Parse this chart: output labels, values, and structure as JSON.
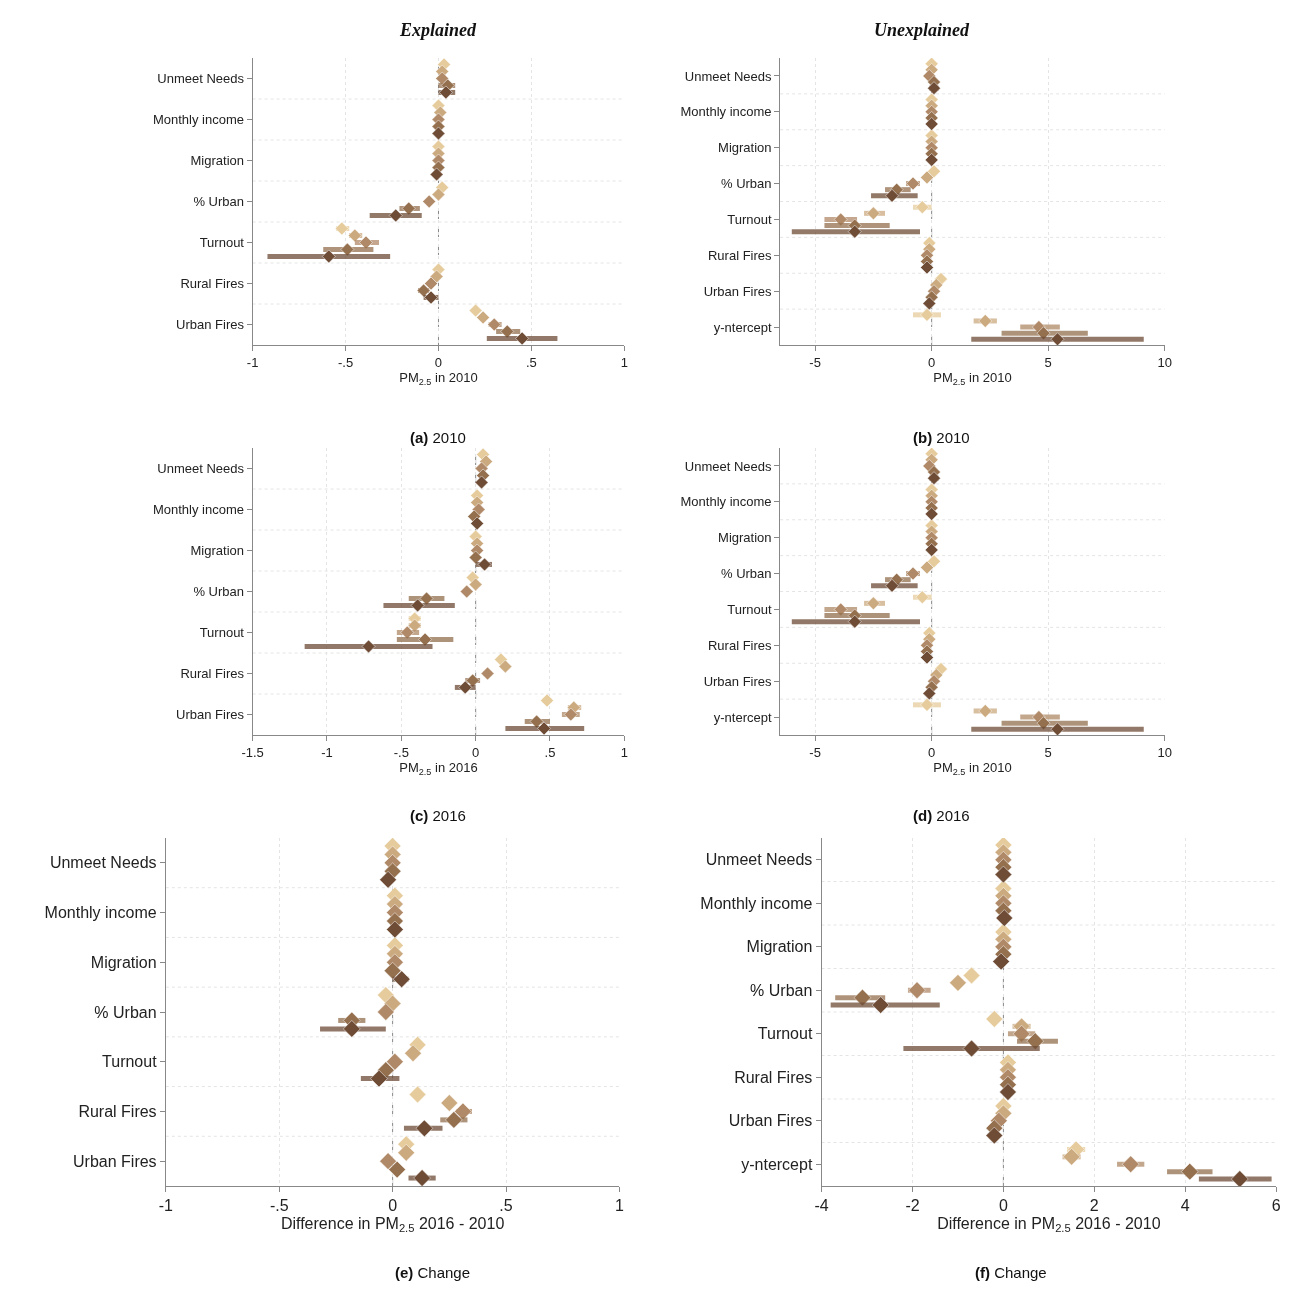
{
  "chart_data": [
    {
      "type": "scatter",
      "orientation": "horizontal",
      "title": "Explained",
      "subtitle": "(a) 2010",
      "xlabel": "PM$_{2.5}$ in 2010",
      "marker": "diamond",
      "grid": true,
      "categories": [
        "Unmeet Needs",
        "Monthly income",
        "Migration",
        "% Urban",
        "Turnout",
        "Rural Fires",
        "Urban Fires"
      ],
      "xlim": [
        -1,
        1
      ],
      "xticks": [
        -1,
        {
          "value": -0.5,
          "label": "-.5"
        },
        0,
        {
          "value": 0.5,
          "label": ".5"
        },
        1
      ],
      "ref_lines": [
        {
          "axis": "x",
          "value": 0,
          "line_style": "dashed"
        }
      ],
      "series": [
        {
          "color": "#e6cc9c",
          "values": [
            0.03,
            0,
            0,
            0.02,
            -0.52,
            0,
            0.2
          ],
          "errors": [
            null,
            null,
            null,
            null,
            [
              -0.55,
              -0.48
            ],
            null,
            null
          ]
        },
        {
          "color": "#ccaa80",
          "values": [
            0.02,
            0.01,
            0,
            0,
            -0.45,
            -0.01,
            0.24
          ],
          "errors": [
            null,
            null,
            null,
            null,
            [
              -0.48,
              -0.41
            ],
            null,
            null
          ]
        },
        {
          "color": "#b08a68",
          "values": [
            0.02,
            0,
            0,
            -0.05,
            -0.39,
            -0.04,
            0.3
          ],
          "errors": [
            null,
            null,
            null,
            null,
            [
              -0.45,
              -0.32
            ],
            null,
            [
              0.27,
              0.34
            ]
          ]
        },
        {
          "color": "#94704f",
          "values": [
            0.05,
            0,
            0,
            -0.16,
            -0.49,
            -0.08,
            0.37
          ],
          "errors": [
            [
              0.0,
              0.09
            ],
            null,
            null,
            [
              -0.21,
              -0.1
            ],
            [
              -0.62,
              -0.35
            ],
            [
              -0.11,
              -0.05
            ],
            [
              0.31,
              0.44
            ]
          ]
        },
        {
          "color": "#6e4c36",
          "values": [
            0.04,
            0,
            -0.01,
            -0.23,
            -0.59,
            -0.04,
            0.45
          ],
          "errors": [
            [
              0.0,
              0.09
            ],
            null,
            null,
            [
              -0.37,
              -0.09
            ],
            [
              -0.92,
              -0.26
            ],
            [
              -0.08,
              0.0
            ],
            [
              0.26,
              0.64
            ]
          ]
        }
      ]
    },
    {
      "type": "scatter",
      "orientation": "horizontal",
      "title": "Unexplained",
      "subtitle": "(b) 2010",
      "xlabel": "PM$_{2.5}$ in 2010",
      "marker": "diamond",
      "grid": true,
      "categories": [
        "Unmeet Needs",
        "Monthly income",
        "Migration",
        "% Urban",
        "Turnout",
        "Rural Fires",
        "Urban Fires",
        "y-ntercept"
      ],
      "xlim": [
        -6.5,
        10
      ],
      "xticks": [
        -5,
        0,
        5,
        10
      ],
      "ref_lines": [
        {
          "axis": "x",
          "value": 0,
          "line_style": "dashed"
        }
      ],
      "series": [
        {
          "color": "#e6cc9c",
          "values": [
            0,
            0,
            0,
            0.1,
            -0.4,
            -0.1,
            0.4,
            -0.2
          ],
          "errors": [
            null,
            null,
            null,
            null,
            [
              -0.8,
              0
            ],
            null,
            null,
            [
              -0.8,
              0.4
            ]
          ]
        },
        {
          "color": "#ccaa80",
          "values": [
            0,
            0,
            0,
            -0.2,
            -2.5,
            -0.1,
            0.2,
            2.3
          ],
          "errors": [
            null,
            null,
            null,
            null,
            [
              -2.9,
              -2.0
            ],
            null,
            null,
            [
              1.8,
              2.8
            ]
          ]
        },
        {
          "color": "#b08a68",
          "values": [
            -0.1,
            0,
            0,
            -0.8,
            -3.9,
            -0.2,
            0.1,
            4.6
          ],
          "errors": [
            null,
            null,
            null,
            [
              -1.1,
              -0.5
            ],
            [
              -4.6,
              -3.2
            ],
            null,
            null,
            [
              3.8,
              5.5
            ]
          ]
        },
        {
          "color": "#94704f",
          "values": [
            0.1,
            0,
            0,
            -1.5,
            -3.3,
            -0.2,
            0.0,
            4.8
          ],
          "errors": [
            null,
            null,
            null,
            [
              -2.0,
              -0.9
            ],
            [
              -4.6,
              -1.8
            ],
            null,
            null,
            [
              3.0,
              6.7
            ]
          ]
        },
        {
          "color": "#6e4c36",
          "values": [
            0.1,
            0,
            0,
            -1.7,
            -3.3,
            -0.2,
            -0.1,
            5.4
          ],
          "errors": [
            [
              -0.1,
              0.3
            ],
            null,
            null,
            [
              -2.6,
              -0.6
            ],
            [
              -6.0,
              -0.5
            ],
            null,
            null,
            [
              1.7,
              9.1
            ]
          ]
        }
      ]
    },
    {
      "type": "scatter",
      "orientation": "horizontal",
      "subtitle": "(c) 2016",
      "xlabel": "PM$_{2.5}$ in 2016",
      "marker": "diamond",
      "grid": true,
      "categories": [
        "Unmeet Needs",
        "Monthly income",
        "Migration",
        "% Urban",
        "Turnout",
        "Rural Fires",
        "Urban Fires"
      ],
      "xlim": [
        -1.5,
        1
      ],
      "xticks": [
        {
          "value": -1.5,
          "label": "-1.5"
        },
        -1,
        {
          "value": -0.5,
          "label": "-.5"
        },
        0,
        {
          "value": 0.5,
          "label": ".5"
        },
        1
      ],
      "ref_lines": [
        {
          "axis": "x",
          "value": 0,
          "line_style": "dashed"
        }
      ],
      "series": [
        {
          "color": "#e6cc9c",
          "values": [
            0.05,
            0.01,
            0.0,
            -0.02,
            -0.41,
            0.17,
            0.48
          ],
          "errors": [
            null,
            null,
            null,
            null,
            [
              -0.45,
              -0.37
            ],
            null,
            [
              0.45,
              0.51
            ]
          ]
        },
        {
          "color": "#ccaa80",
          "values": [
            0.07,
            0.01,
            0.01,
            0.0,
            -0.41,
            0.2,
            0.66
          ],
          "errors": [
            null,
            null,
            null,
            null,
            [
              -0.45,
              -0.37
            ],
            null,
            [
              0.62,
              0.71
            ]
          ]
        },
        {
          "color": "#b08a68",
          "values": [
            0.04,
            0.02,
            0.01,
            -0.06,
            -0.46,
            0.08,
            0.64
          ],
          "errors": [
            null,
            null,
            null,
            null,
            [
              -0.53,
              -0.38
            ],
            [
              0.05,
              0.11
            ],
            [
              0.58,
              0.7
            ]
          ]
        },
        {
          "color": "#94704f",
          "values": [
            0.05,
            -0.01,
            0.0,
            -0.33,
            -0.34,
            -0.02,
            0.41
          ],
          "errors": [
            null,
            null,
            null,
            [
              -0.45,
              -0.21
            ],
            [
              -0.53,
              -0.15
            ],
            [
              -0.07,
              0.03
            ],
            [
              0.33,
              0.5
            ]
          ]
        },
        {
          "color": "#6e4c36",
          "values": [
            0.04,
            0.01,
            0.06,
            -0.39,
            -0.72,
            -0.07,
            0.46
          ],
          "errors": [
            null,
            null,
            [
              0.0,
              0.11
            ],
            [
              -0.62,
              -0.14
            ],
            [
              -1.15,
              -0.29
            ],
            [
              -0.14,
              0.0
            ],
            [
              0.2,
              0.73
            ]
          ]
        }
      ]
    },
    {
      "type": "scatter",
      "orientation": "horizontal",
      "subtitle": "(d) 2016",
      "xlabel": "PM$_{2.5}$ in 2010",
      "marker": "diamond",
      "grid": true,
      "categories": [
        "Unmeet Needs",
        "Monthly income",
        "Migration",
        "% Urban",
        "Turnout",
        "Rural Fires",
        "Urban Fires",
        "y-ntercept"
      ],
      "xlim": [
        -6.5,
        10
      ],
      "xticks": [
        -5,
        0,
        5,
        10
      ],
      "ref_lines": [
        {
          "axis": "x",
          "value": 0,
          "line_style": "dashed"
        }
      ],
      "series": [
        {
          "color": "#e6cc9c",
          "values": [
            0,
            0,
            0,
            0.1,
            -0.4,
            -0.1,
            0.4,
            -0.2
          ],
          "errors": [
            null,
            null,
            null,
            null,
            [
              -0.8,
              0
            ],
            null,
            null,
            [
              -0.8,
              0.4
            ]
          ]
        },
        {
          "color": "#ccaa80",
          "values": [
            0,
            0,
            0,
            -0.2,
            -2.5,
            -0.1,
            0.2,
            2.3
          ],
          "errors": [
            null,
            null,
            null,
            null,
            [
              -2.9,
              -2.0
            ],
            null,
            null,
            [
              1.8,
              2.8
            ]
          ]
        },
        {
          "color": "#b08a68",
          "values": [
            -0.1,
            0,
            0,
            -0.8,
            -3.9,
            -0.2,
            0.1,
            4.6
          ],
          "errors": [
            null,
            null,
            null,
            [
              -1.1,
              -0.5
            ],
            [
              -4.6,
              -3.2
            ],
            null,
            null,
            [
              3.8,
              5.5
            ]
          ]
        },
        {
          "color": "#94704f",
          "values": [
            0.1,
            0,
            0,
            -1.5,
            -3.3,
            -0.2,
            0.0,
            4.8
          ],
          "errors": [
            null,
            null,
            null,
            [
              -2.0,
              -0.9
            ],
            [
              -4.6,
              -1.8
            ],
            null,
            null,
            [
              3.0,
              6.7
            ]
          ]
        },
        {
          "color": "#6e4c36",
          "values": [
            0.1,
            0,
            0,
            -1.7,
            -3.3,
            -0.2,
            -0.1,
            5.4
          ],
          "errors": [
            [
              -0.1,
              0.3
            ],
            null,
            null,
            [
              -2.6,
              -0.6
            ],
            [
              -6.0,
              -0.5
            ],
            null,
            null,
            [
              1.7,
              9.1
            ]
          ]
        }
      ]
    },
    {
      "type": "scatter",
      "orientation": "horizontal",
      "subtitle": "(e) Change",
      "xlabel": "Difference in PM$_{2.5}$ 2016 - 2010",
      "marker": "diamond",
      "grid": true,
      "categories": [
        "Unmeet Needs",
        "Monthly income",
        "Migration",
        "% Urban",
        "Turnout",
        "Rural Fires",
        "Urban Fires"
      ],
      "xlim": [
        -1,
        1
      ],
      "xticks": [
        -1,
        {
          "value": -0.5,
          "label": "-.5"
        },
        0,
        {
          "value": 0.5,
          "label": ".5"
        },
        1
      ],
      "ref_lines": [
        {
          "axis": "x",
          "value": 0,
          "line_style": "dashed"
        }
      ],
      "series": [
        {
          "color": "#e6cc9c",
          "values": [
            0,
            0.01,
            0.01,
            -0.03,
            0.11,
            0.11,
            0.06
          ],
          "errors": [
            null,
            null,
            null,
            null,
            null,
            null,
            null
          ]
        },
        {
          "color": "#ccaa80",
          "values": [
            0,
            0.01,
            0.01,
            0.0,
            0.09,
            0.25,
            0.06
          ],
          "errors": [
            null,
            null,
            null,
            null,
            null,
            null,
            null
          ]
        },
        {
          "color": "#b08a68",
          "values": [
            0,
            0.01,
            0.01,
            -0.03,
            0.01,
            0.31,
            -0.02
          ],
          "errors": [
            null,
            null,
            null,
            null,
            null,
            [
              0.28,
              0.35
            ],
            null
          ]
        },
        {
          "color": "#94704f",
          "values": [
            0,
            0.01,
            0,
            -0.18,
            -0.03,
            0.27,
            0.02
          ],
          "errors": [
            null,
            null,
            null,
            [
              -0.24,
              -0.12
            ],
            null,
            [
              0.21,
              0.33
            ],
            null
          ]
        },
        {
          "color": "#6e4c36",
          "values": [
            -0.02,
            0.01,
            0.04,
            -0.18,
            -0.06,
            0.14,
            0.13
          ],
          "errors": [
            null,
            null,
            [
              0.0,
              0.07
            ],
            [
              -0.32,
              -0.03
            ],
            [
              -0.14,
              0.03
            ],
            [
              0.05,
              0.22
            ],
            [
              0.07,
              0.19
            ]
          ]
        }
      ]
    },
    {
      "type": "scatter",
      "orientation": "horizontal",
      "subtitle": "(f) Change",
      "xlabel": "Difference in PM$_{2.5}$ 2016 - 2010",
      "marker": "diamond",
      "grid": true,
      "categories": [
        "Unmeet Needs",
        "Monthly income",
        "Migration",
        "% Urban",
        "Turnout",
        "Rural Fires",
        "Urban Fires",
        "y-ntercept"
      ],
      "xlim": [
        -4,
        6
      ],
      "xticks": [
        -4,
        -2,
        0,
        2,
        4,
        6
      ],
      "ref_lines": [
        {
          "axis": "x",
          "value": 0,
          "line_style": "dashed"
        }
      ],
      "series": [
        {
          "color": "#e6cc9c",
          "values": [
            0,
            0,
            0,
            -0.7,
            -0.2,
            0.1,
            0,
            1.6
          ],
          "errors": [
            null,
            null,
            null,
            null,
            null,
            null,
            null,
            [
              1.4,
              1.8
            ]
          ]
        },
        {
          "color": "#ccaa80",
          "values": [
            0,
            0,
            0,
            -1.0,
            0.4,
            0.1,
            0,
            1.5
          ],
          "errors": [
            null,
            null,
            null,
            null,
            [
              0.2,
              0.6
            ],
            null,
            null,
            [
              1.3,
              1.7
            ]
          ]
        },
        {
          "color": "#b08a68",
          "values": [
            0,
            0,
            0,
            -1.9,
            0.4,
            0.1,
            -0.1,
            2.8
          ],
          "errors": [
            null,
            null,
            null,
            [
              -2.1,
              -1.6
            ],
            [
              0.1,
              0.7
            ],
            null,
            null,
            [
              2.5,
              3.1
            ]
          ]
        },
        {
          "color": "#94704f",
          "values": [
            0,
            0,
            0,
            -3.1,
            0.7,
            0.1,
            -0.2,
            4.1
          ],
          "errors": [
            null,
            null,
            null,
            [
              -3.7,
              -2.6
            ],
            [
              0.3,
              1.2
            ],
            null,
            null,
            [
              3.6,
              4.6
            ]
          ]
        },
        {
          "color": "#6e4c36",
          "values": [
            0,
            0.02,
            -0.05,
            -2.7,
            -0.7,
            0.1,
            -0.2,
            5.2
          ],
          "errors": [
            null,
            null,
            null,
            [
              -3.8,
              -1.4
            ],
            [
              -2.2,
              0.8
            ],
            null,
            null,
            [
              4.3,
              5.9
            ]
          ]
        }
      ]
    }
  ]
}
